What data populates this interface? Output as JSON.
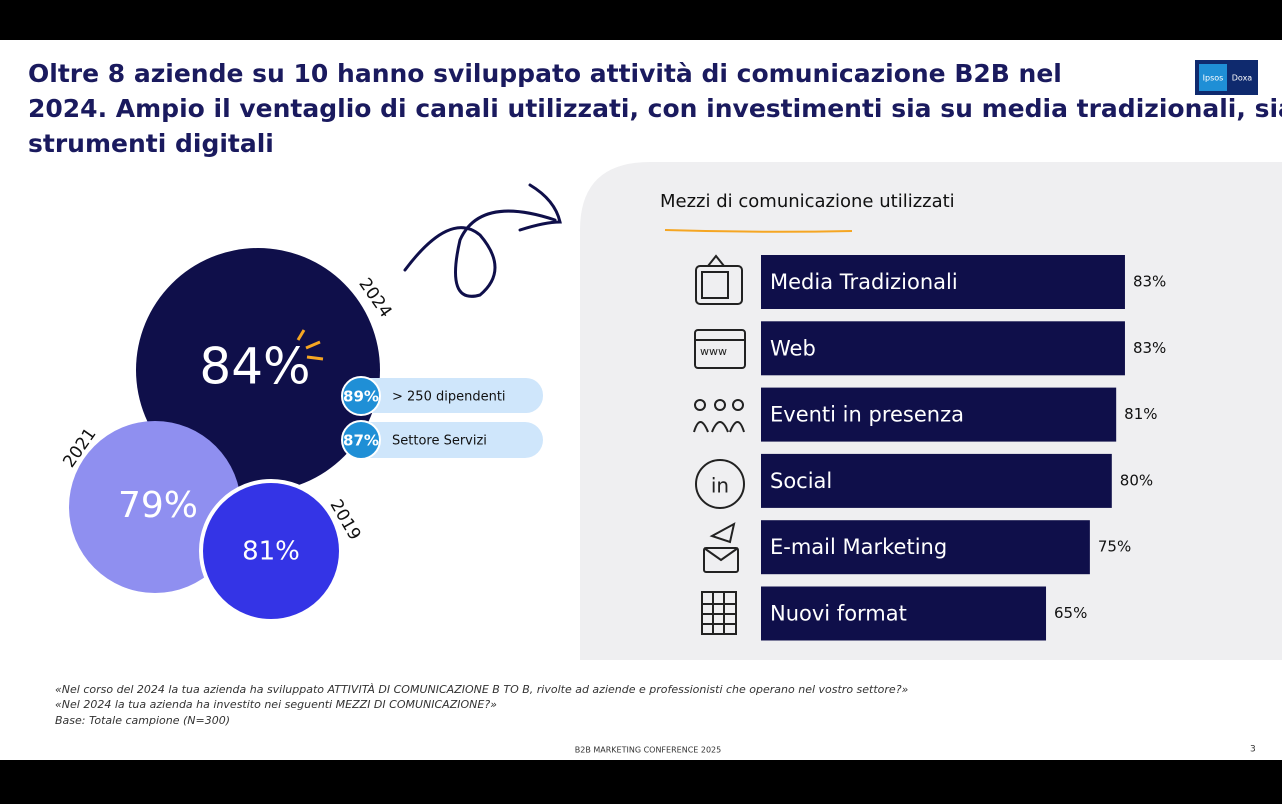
{
  "header": {
    "title": "Oltre 8 aziende su 10 hanno sviluppato attività di comunicazione B2B nel 2024. Ampio il ventaglio di canali utilizzati, con investimenti sia su media tradizionali, sia su strumenti digitali",
    "logo_left": "Ipsos",
    "logo_right": "Doxa"
  },
  "highlights": {
    "bubbles": [
      {
        "year": "2024",
        "label": "84%"
      },
      {
        "year": "2021",
        "label": "79%"
      },
      {
        "year": "2019",
        "label": "81%"
      }
    ],
    "pills": [
      {
        "value": "89%",
        "label": "> 250 dipendenti"
      },
      {
        "value": "87%",
        "label": "Settore Servizi"
      }
    ]
  },
  "chart_data": {
    "type": "bar",
    "orientation": "horizontal",
    "title": "Mezzi di comunicazione utilizzati",
    "categories": [
      "Media Tradizionali",
      "Web",
      "Eventi in presenza",
      "Social",
      "E-mail Marketing",
      "Nuovi format"
    ],
    "values": [
      83,
      83,
      81,
      80,
      75,
      65
    ],
    "value_labels": [
      "83%",
      "83%",
      "81%",
      "80%",
      "75%",
      "65%"
    ],
    "color": "#0f0f4a"
  },
  "footnotes": [
    "«Nel corso del 2024 la tua azienda ha sviluppato ATTIVITÀ DI COMUNICAZIONE B TO B, rivolte ad aziende e professionisti che operano nel vostro settore?»",
    "«Nel 2024 la tua azienda ha investito nei seguenti MEZZI DI COMUNICAZIONE?»",
    "Base: Totale campione (N=300)"
  ],
  "footer": {
    "event": "B2B MARKETING CONFERENCE 2025",
    "page": "3"
  }
}
